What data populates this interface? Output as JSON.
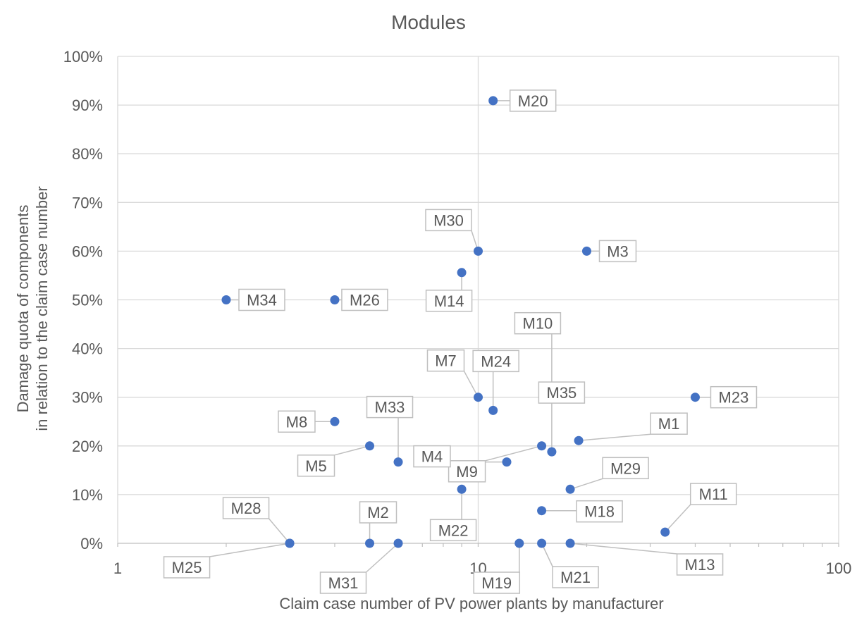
{
  "chart_data": {
    "type": "scatter",
    "title": "Modules",
    "xlabel": "Claim case number of PV power plants by manufacturer",
    "ylabel": "Damage quota of components in relation to the claim case number",
    "ylabel_lines": [
      "Damage quota of components",
      "in relation to the claim case number"
    ],
    "x_scale": "log",
    "xlim": [
      1,
      100
    ],
    "ylim": [
      0,
      100
    ],
    "x_ticks": [
      1,
      10,
      100
    ],
    "x_tick_labels": [
      "1",
      "10",
      "100"
    ],
    "y_ticks": [
      0,
      10,
      20,
      30,
      40,
      50,
      60,
      70,
      80,
      90,
      100
    ],
    "y_tick_labels": [
      "0%",
      "10%",
      "20%",
      "30%",
      "40%",
      "50%",
      "60%",
      "70%",
      "80%",
      "90%",
      "100%"
    ],
    "grid": true,
    "legend": "none",
    "marker_color": "#4472c4",
    "points": [
      {
        "label": "M20",
        "x": 11,
        "y": 90.9
      },
      {
        "label": "M30",
        "x": 10,
        "y": 60
      },
      {
        "label": "M3",
        "x": 20,
        "y": 60
      },
      {
        "label": "M14",
        "x": 9,
        "y": 55.6
      },
      {
        "label": "M34",
        "x": 2,
        "y": 50
      },
      {
        "label": "M26",
        "x": 4,
        "y": 50
      },
      {
        "label": "M10",
        "x": 16,
        "y": 31.3
      },
      {
        "label": "M7",
        "x": 10,
        "y": 30
      },
      {
        "label": "M24",
        "x": 11,
        "y": 27.3
      },
      {
        "label": "M23",
        "x": 40,
        "y": 30
      },
      {
        "label": "M8",
        "x": 4,
        "y": 25
      },
      {
        "label": "M35",
        "x": 16,
        "y": 18.8
      },
      {
        "label": "M1",
        "x": 19,
        "y": 21.1
      },
      {
        "label": "M5",
        "x": 5,
        "y": 20
      },
      {
        "label": "M9",
        "x": 15,
        "y": 20
      },
      {
        "label": "M33",
        "x": 6,
        "y": 16.7
      },
      {
        "label": "M4",
        "x": 12,
        "y": 16.7
      },
      {
        "label": "M22",
        "x": 9,
        "y": 11.1
      },
      {
        "label": "M29",
        "x": 18,
        "y": 11.1
      },
      {
        "label": "M18",
        "x": 15,
        "y": 6.7
      },
      {
        "label": "M11",
        "x": 33,
        "y": 2.3
      },
      {
        "label": "M28",
        "x": 3,
        "y": 0
      },
      {
        "label": "M25",
        "x": 3,
        "y": 0
      },
      {
        "label": "M2",
        "x": 5,
        "y": 0
      },
      {
        "label": "M31",
        "x": 6,
        "y": 0
      },
      {
        "label": "M19",
        "x": 13,
        "y": 0
      },
      {
        "label": "M21",
        "x": 15,
        "y": 0
      },
      {
        "label": "M13",
        "x": 18,
        "y": 0
      }
    ]
  }
}
